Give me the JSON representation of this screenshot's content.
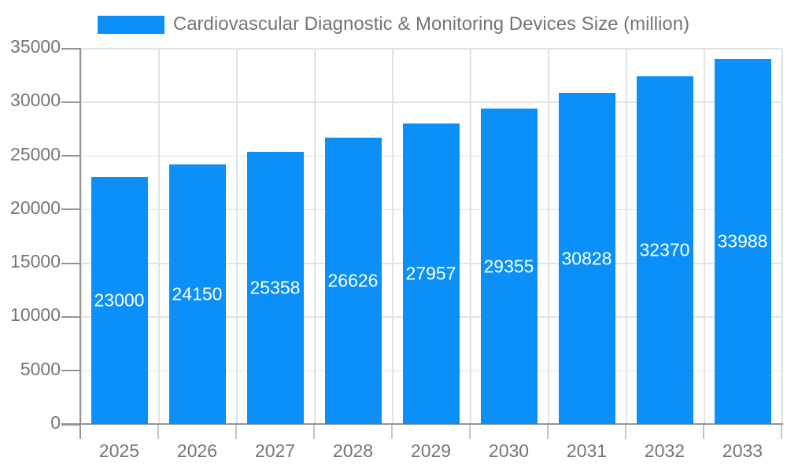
{
  "legend": {
    "label": "Cardiovascular Diagnostic & Monitoring Devices Size (million)"
  },
  "chart_data": {
    "type": "bar",
    "title": "Cardiovascular Diagnostic & Monitoring Devices Size (million)",
    "categories": [
      "2025",
      "2026",
      "2027",
      "2028",
      "2029",
      "2030",
      "2031",
      "2032",
      "2033"
    ],
    "values": [
      23000,
      24150,
      25358,
      26626,
      27957,
      29355,
      30828,
      32370,
      33988
    ],
    "xlabel": "",
    "ylabel": "",
    "ylim": [
      0,
      35000
    ],
    "ytick_step": 5000,
    "ytick_labels": [
      "0",
      "5000",
      "10000",
      "15000",
      "20000",
      "25000",
      "30000",
      "35000"
    ],
    "grid": true,
    "legend_position": "top-center",
    "colors": {
      "bar": "#0a90f8",
      "value_label": "#ffffff",
      "axis": "#949494",
      "grid": "#e2e2e2",
      "minor_tick": "#c4c4c4",
      "tick_label": "#757575"
    }
  }
}
